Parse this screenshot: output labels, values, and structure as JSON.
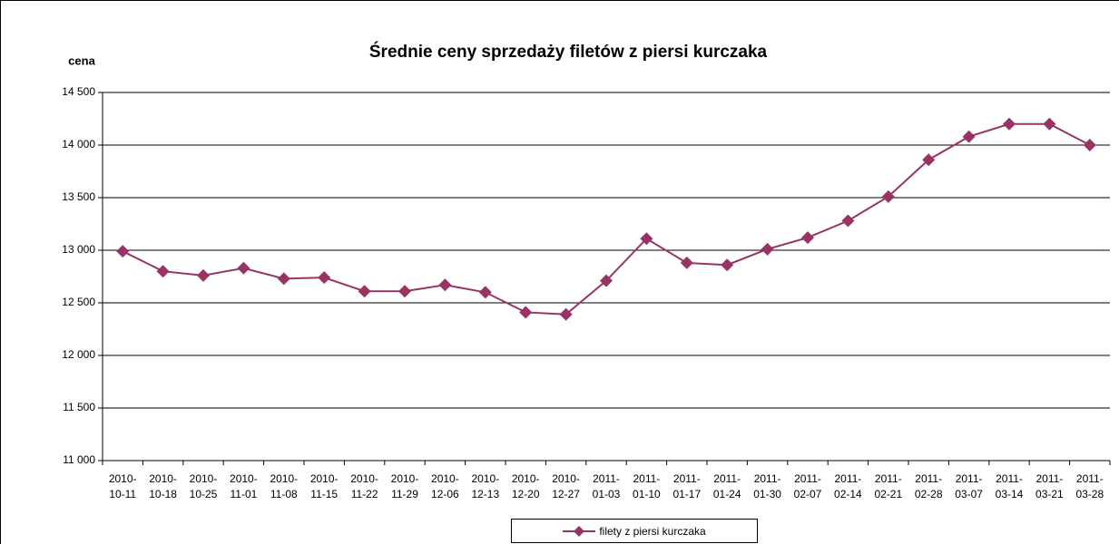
{
  "chart_data": {
    "type": "line",
    "title": "Średnie ceny sprzedaży filetów z piersi kurczaka",
    "y_label": "cena",
    "categories": [
      "2010-10-11",
      "2010-10-18",
      "2010-10-25",
      "2010-11-01",
      "2010-11-08",
      "2010-11-15",
      "2010-11-22",
      "2010-11-29",
      "2010-12-06",
      "2010-12-13",
      "2010-12-20",
      "2010-12-27",
      "2011-01-03",
      "2011-01-10",
      "2011-01-17",
      "2011-01-24",
      "2011-01-30",
      "2011-02-07",
      "2011-02-14",
      "2011-02-21",
      "2011-02-28",
      "2011-03-07",
      "2011-03-14",
      "2011-03-21",
      "2011-03-28"
    ],
    "series": [
      {
        "name": "filety z piersi kurczaka",
        "color": "#993366",
        "values": [
          12990,
          12800,
          12760,
          12830,
          12730,
          12740,
          12610,
          12610,
          12670,
          12600,
          12410,
          12390,
          12710,
          13110,
          12880,
          12860,
          13010,
          13120,
          13280,
          13510,
          13860,
          14080,
          14200,
          14200,
          14000
        ]
      }
    ],
    "ylim": [
      11000,
      14500
    ],
    "yticks": [
      {
        "value": 11000,
        "label": "11 000"
      },
      {
        "value": 11500,
        "label": "11 500"
      },
      {
        "value": 12000,
        "label": "12 000"
      },
      {
        "value": 12500,
        "label": "12 500"
      },
      {
        "value": 13000,
        "label": "13 000"
      },
      {
        "value": 13500,
        "label": "13 500"
      },
      {
        "value": 14000,
        "label": "14 000"
      },
      {
        "value": 14500,
        "label": "14 500"
      }
    ],
    "grid": true
  }
}
